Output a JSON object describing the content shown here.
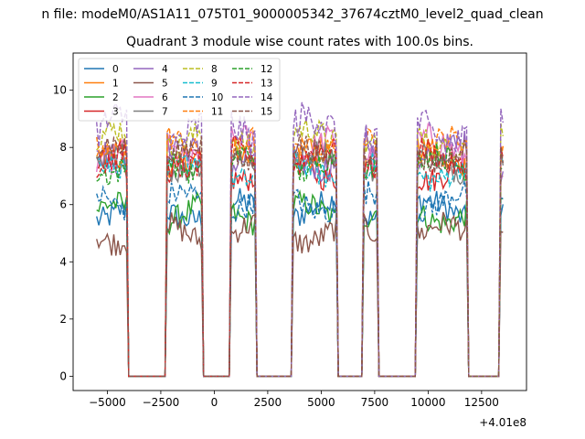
{
  "chart_data": {
    "type": "line",
    "suptitle": "n file: modeM0/AS1A11_075T01_9000005342_37674cztM0_level2_quad_clean",
    "title": "Quadrant 3 module wise count rates with 100.0s bins.",
    "xlabel": "",
    "ylabel": "",
    "x_offset_label": "+4.01e8",
    "xlim": [
      -6600,
      14600
    ],
    "ylim": [
      -0.5,
      11.3
    ],
    "xticks": [
      {
        "value": -5000,
        "label": "−5000"
      },
      {
        "value": -2500,
        "label": "−2500"
      },
      {
        "value": 0,
        "label": "0"
      },
      {
        "value": 2500,
        "label": "2500"
      },
      {
        "value": 5000,
        "label": "5000"
      },
      {
        "value": 7500,
        "label": "7500"
      },
      {
        "value": 10000,
        "label": "10000"
      },
      {
        "value": 12500,
        "label": "12500"
      }
    ],
    "yticks": [
      {
        "value": 0,
        "label": "0"
      },
      {
        "value": 2,
        "label": "2"
      },
      {
        "value": 4,
        "label": "4"
      },
      {
        "value": 6,
        "label": "6"
      },
      {
        "value": 8,
        "label": "8"
      },
      {
        "value": 10,
        "label": "10"
      }
    ],
    "grid": false,
    "legend_position": "top-left",
    "legend_columns": 4,
    "active_intervals": [
      [
        -5500,
        -4100
      ],
      [
        -2200,
        -600
      ],
      [
        800,
        1900
      ],
      [
        3700,
        5700
      ],
      [
        6950,
        7650
      ],
      [
        9450,
        11850
      ],
      [
        13350,
        13550
      ]
    ],
    "series": [
      {
        "name": "0",
        "color": "#1f77b4",
        "dash": false,
        "level": 5.8,
        "amp": 1.0
      },
      {
        "name": "1",
        "color": "#ff7f0e",
        "dash": false,
        "level": 7.7,
        "amp": 1.0
      },
      {
        "name": "2",
        "color": "#2ca02c",
        "dash": false,
        "level": 5.7,
        "amp": 1.0
      },
      {
        "name": "3",
        "color": "#d62728",
        "dash": false,
        "level": 7.2,
        "amp": 1.0
      },
      {
        "name": "4",
        "color": "#9467bd",
        "dash": false,
        "level": 7.7,
        "amp": 1.2
      },
      {
        "name": "5",
        "color": "#8c564b",
        "dash": false,
        "level": 5.0,
        "amp": 1.0
      },
      {
        "name": "6",
        "color": "#e377c2",
        "dash": false,
        "level": 7.9,
        "amp": 1.2
      },
      {
        "name": "7",
        "color": "#7f7f7f",
        "dash": false,
        "level": 7.5,
        "amp": 1.0
      },
      {
        "name": "8",
        "color": "#bcbd22",
        "dash": true,
        "level": 8.3,
        "amp": 1.0
      },
      {
        "name": "9",
        "color": "#17becf",
        "dash": true,
        "level": 7.2,
        "amp": 1.0
      },
      {
        "name": "10",
        "color": "#1f77b4",
        "dash": true,
        "level": 6.1,
        "amp": 1.0
      },
      {
        "name": "11",
        "color": "#ff7f0e",
        "dash": true,
        "level": 8.0,
        "amp": 1.0
      },
      {
        "name": "12",
        "color": "#2ca02c",
        "dash": true,
        "level": 7.4,
        "amp": 1.0
      },
      {
        "name": "13",
        "color": "#d62728",
        "dash": true,
        "level": 7.6,
        "amp": 1.0
      },
      {
        "name": "14",
        "color": "#9467bd",
        "dash": true,
        "level": 8.6,
        "amp": 1.4
      },
      {
        "name": "15",
        "color": "#8c564b",
        "dash": true,
        "level": 7.8,
        "amp": 1.0
      }
    ]
  }
}
